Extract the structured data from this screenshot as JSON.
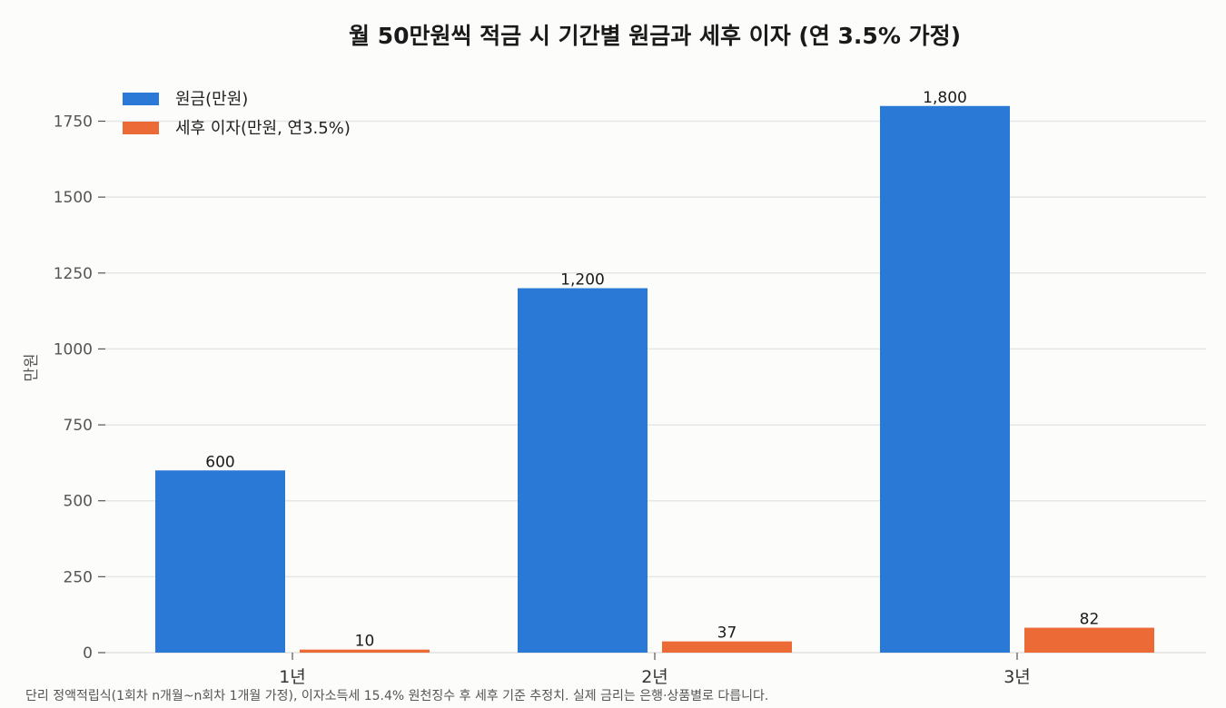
{
  "chart_data": {
    "type": "bar",
    "title": "월 50만원씩 적금 시 기간별 원금과 세후 이자 (연 3.5% 가정)",
    "ylabel": "만원",
    "xlabel": "",
    "categories": [
      "1년",
      "2년",
      "3년"
    ],
    "series": [
      {
        "name": "원금(만원)",
        "color": "#2a79d6",
        "values": [
          600,
          1200,
          1800
        ],
        "labels": [
          "600",
          "1,200",
          "1,800"
        ]
      },
      {
        "name": "세후 이자(만원, 연3.5%)",
        "color": "#ec6a35",
        "values": [
          10,
          37,
          82
        ],
        "labels": [
          "10",
          "37",
          "82"
        ]
      }
    ],
    "ylim": [
      0,
      1880
    ],
    "yticks": [
      0,
      250,
      500,
      750,
      1000,
      1250,
      1500,
      1750
    ],
    "grid": true,
    "legend_position": "top-left",
    "note": "단리 정액적립식(1회차 n개월~n회차 1개월 가정), 이자소득세 15.4% 원천징수 후 세후 기준 추정치. 실제 금리는 은행·상품별로 다릅니다."
  }
}
